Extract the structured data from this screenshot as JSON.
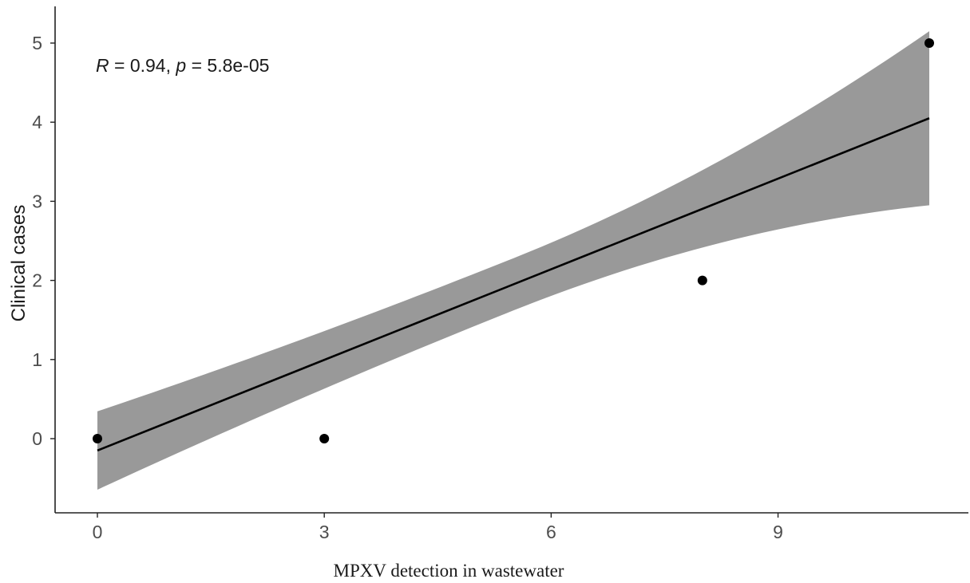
{
  "chart_data": {
    "type": "scatter",
    "title": "",
    "xlabel": "MPXV detection in wastewater",
    "ylabel": "Clinical cases",
    "xlim": [
      -1.8,
      11.7
    ],
    "ylim": [
      -0.95,
      5.45
    ],
    "x_ticks": [
      0,
      3,
      6,
      9
    ],
    "y_ticks": [
      0,
      1,
      2,
      3,
      4,
      5
    ],
    "grid": false,
    "points": [
      {
        "x": 0,
        "y": 0
      },
      {
        "x": 3,
        "y": 0
      },
      {
        "x": 8,
        "y": 2
      },
      {
        "x": 11,
        "y": 5
      }
    ],
    "regression": {
      "x": [
        0,
        11
      ],
      "y": [
        -0.15,
        4.05
      ],
      "ci_lower": [
        -0.64,
        2.97
      ],
      "ci_upper": [
        0.35,
        5.17
      ]
    },
    "annotation": {
      "r_symbol": "R",
      "r_text": " = 0.94, ",
      "p_symbol": "p",
      "p_text": " = 5.8e-05"
    },
    "colors": {
      "points": "#000000",
      "line": "#000000",
      "ribbon": "#999999"
    }
  }
}
